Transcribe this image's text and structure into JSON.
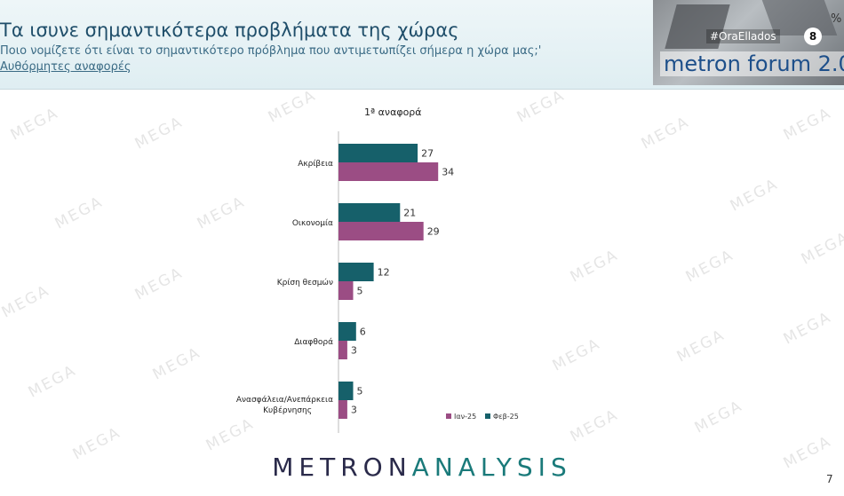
{
  "header": {
    "title": "Τα ισυνε σημαντικότερα προβλήματα της χώρας",
    "subtitle": "Ποιο νομίζετε ότι είναι το σημαντικότερο πρόβλημα που αντιμετωπίζει σήμερα η χώρα μας;'",
    "subtitle2": "Αυθόρμητες αναφορές"
  },
  "overlay": {
    "hashtag": "#OraEllados",
    "channel_badge": "8",
    "forum_name": "metron forum 2.0",
    "percent_mark": "%"
  },
  "watermark_text": "MEGA",
  "footer": {
    "logo_left": "METRON",
    "logo_right": "ANALYSIS",
    "page_number": "7"
  },
  "colors": {
    "series_jan": "#9b4d84",
    "series_feb": "#16606a",
    "title": "#1f4e6a"
  },
  "chart_data": {
    "type": "bar",
    "orientation": "horizontal",
    "title": "1ª αναφορά",
    "categories": [
      "Ακρίβεια",
      "Οικονομία",
      "Κρίση θεσμών",
      "Διαφθορά",
      "Ανασφάλεια/Ανεπάρκεια Κυβέρνησης"
    ],
    "series": [
      {
        "name": "Φεβ-25",
        "values": [
          27,
          21,
          12,
          6,
          5
        ]
      },
      {
        "name": "Ιαν-25",
        "values": [
          34,
          29,
          5,
          3,
          3
        ]
      }
    ],
    "legend": [
      "Ιαν-25",
      "Φεβ-25"
    ],
    "legend_position": "bottom-right",
    "grid": false
  }
}
